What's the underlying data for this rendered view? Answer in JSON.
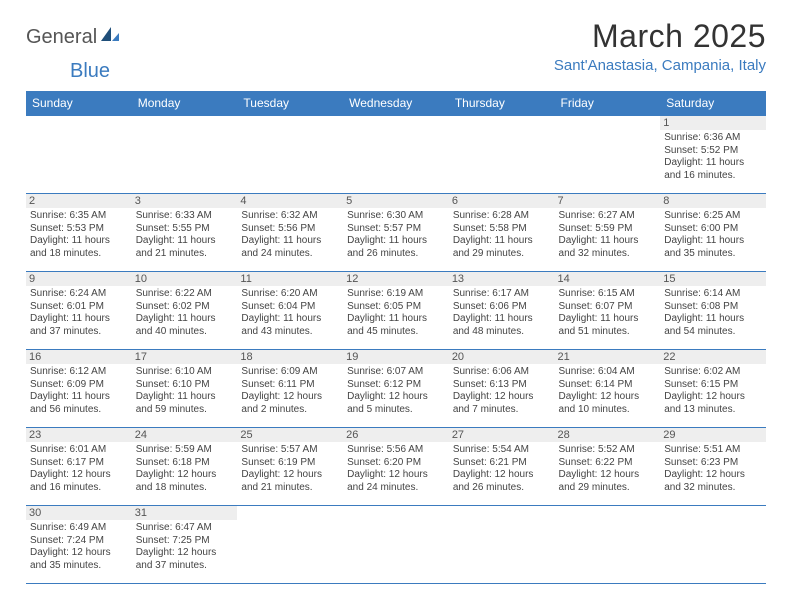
{
  "logo": {
    "general": "General",
    "blue": "Blue"
  },
  "title": "March 2025",
  "location": "Sant'Anastasia, Campania, Italy",
  "colors": {
    "header_bg": "#3b7bbf",
    "header_fg": "#ffffff",
    "daynum_bg": "#eeeeee",
    "border": "#3b7bbf",
    "text": "#444444",
    "title": "#333333"
  },
  "typography": {
    "title_fontsize": 32,
    "location_fontsize": 15,
    "header_fontsize": 12,
    "cell_fontsize": 10,
    "daynum_fontsize": 11
  },
  "day_headers": [
    "Sunday",
    "Monday",
    "Tuesday",
    "Wednesday",
    "Thursday",
    "Friday",
    "Saturday"
  ],
  "weeks": [
    [
      null,
      null,
      null,
      null,
      null,
      null,
      {
        "n": "1",
        "sr": "Sunrise: 6:36 AM",
        "ss": "Sunset: 5:52 PM",
        "dl1": "Daylight: 11 hours",
        "dl2": "and 16 minutes."
      }
    ],
    [
      {
        "n": "2",
        "sr": "Sunrise: 6:35 AM",
        "ss": "Sunset: 5:53 PM",
        "dl1": "Daylight: 11 hours",
        "dl2": "and 18 minutes."
      },
      {
        "n": "3",
        "sr": "Sunrise: 6:33 AM",
        "ss": "Sunset: 5:55 PM",
        "dl1": "Daylight: 11 hours",
        "dl2": "and 21 minutes."
      },
      {
        "n": "4",
        "sr": "Sunrise: 6:32 AM",
        "ss": "Sunset: 5:56 PM",
        "dl1": "Daylight: 11 hours",
        "dl2": "and 24 minutes."
      },
      {
        "n": "5",
        "sr": "Sunrise: 6:30 AM",
        "ss": "Sunset: 5:57 PM",
        "dl1": "Daylight: 11 hours",
        "dl2": "and 26 minutes."
      },
      {
        "n": "6",
        "sr": "Sunrise: 6:28 AM",
        "ss": "Sunset: 5:58 PM",
        "dl1": "Daylight: 11 hours",
        "dl2": "and 29 minutes."
      },
      {
        "n": "7",
        "sr": "Sunrise: 6:27 AM",
        "ss": "Sunset: 5:59 PM",
        "dl1": "Daylight: 11 hours",
        "dl2": "and 32 minutes."
      },
      {
        "n": "8",
        "sr": "Sunrise: 6:25 AM",
        "ss": "Sunset: 6:00 PM",
        "dl1": "Daylight: 11 hours",
        "dl2": "and 35 minutes."
      }
    ],
    [
      {
        "n": "9",
        "sr": "Sunrise: 6:24 AM",
        "ss": "Sunset: 6:01 PM",
        "dl1": "Daylight: 11 hours",
        "dl2": "and 37 minutes."
      },
      {
        "n": "10",
        "sr": "Sunrise: 6:22 AM",
        "ss": "Sunset: 6:02 PM",
        "dl1": "Daylight: 11 hours",
        "dl2": "and 40 minutes."
      },
      {
        "n": "11",
        "sr": "Sunrise: 6:20 AM",
        "ss": "Sunset: 6:04 PM",
        "dl1": "Daylight: 11 hours",
        "dl2": "and 43 minutes."
      },
      {
        "n": "12",
        "sr": "Sunrise: 6:19 AM",
        "ss": "Sunset: 6:05 PM",
        "dl1": "Daylight: 11 hours",
        "dl2": "and 45 minutes."
      },
      {
        "n": "13",
        "sr": "Sunrise: 6:17 AM",
        "ss": "Sunset: 6:06 PM",
        "dl1": "Daylight: 11 hours",
        "dl2": "and 48 minutes."
      },
      {
        "n": "14",
        "sr": "Sunrise: 6:15 AM",
        "ss": "Sunset: 6:07 PM",
        "dl1": "Daylight: 11 hours",
        "dl2": "and 51 minutes."
      },
      {
        "n": "15",
        "sr": "Sunrise: 6:14 AM",
        "ss": "Sunset: 6:08 PM",
        "dl1": "Daylight: 11 hours",
        "dl2": "and 54 minutes."
      }
    ],
    [
      {
        "n": "16",
        "sr": "Sunrise: 6:12 AM",
        "ss": "Sunset: 6:09 PM",
        "dl1": "Daylight: 11 hours",
        "dl2": "and 56 minutes."
      },
      {
        "n": "17",
        "sr": "Sunrise: 6:10 AM",
        "ss": "Sunset: 6:10 PM",
        "dl1": "Daylight: 11 hours",
        "dl2": "and 59 minutes."
      },
      {
        "n": "18",
        "sr": "Sunrise: 6:09 AM",
        "ss": "Sunset: 6:11 PM",
        "dl1": "Daylight: 12 hours",
        "dl2": "and 2 minutes."
      },
      {
        "n": "19",
        "sr": "Sunrise: 6:07 AM",
        "ss": "Sunset: 6:12 PM",
        "dl1": "Daylight: 12 hours",
        "dl2": "and 5 minutes."
      },
      {
        "n": "20",
        "sr": "Sunrise: 6:06 AM",
        "ss": "Sunset: 6:13 PM",
        "dl1": "Daylight: 12 hours",
        "dl2": "and 7 minutes."
      },
      {
        "n": "21",
        "sr": "Sunrise: 6:04 AM",
        "ss": "Sunset: 6:14 PM",
        "dl1": "Daylight: 12 hours",
        "dl2": "and 10 minutes."
      },
      {
        "n": "22",
        "sr": "Sunrise: 6:02 AM",
        "ss": "Sunset: 6:15 PM",
        "dl1": "Daylight: 12 hours",
        "dl2": "and 13 minutes."
      }
    ],
    [
      {
        "n": "23",
        "sr": "Sunrise: 6:01 AM",
        "ss": "Sunset: 6:17 PM",
        "dl1": "Daylight: 12 hours",
        "dl2": "and 16 minutes."
      },
      {
        "n": "24",
        "sr": "Sunrise: 5:59 AM",
        "ss": "Sunset: 6:18 PM",
        "dl1": "Daylight: 12 hours",
        "dl2": "and 18 minutes."
      },
      {
        "n": "25",
        "sr": "Sunrise: 5:57 AM",
        "ss": "Sunset: 6:19 PM",
        "dl1": "Daylight: 12 hours",
        "dl2": "and 21 minutes."
      },
      {
        "n": "26",
        "sr": "Sunrise: 5:56 AM",
        "ss": "Sunset: 6:20 PM",
        "dl1": "Daylight: 12 hours",
        "dl2": "and 24 minutes."
      },
      {
        "n": "27",
        "sr": "Sunrise: 5:54 AM",
        "ss": "Sunset: 6:21 PM",
        "dl1": "Daylight: 12 hours",
        "dl2": "and 26 minutes."
      },
      {
        "n": "28",
        "sr": "Sunrise: 5:52 AM",
        "ss": "Sunset: 6:22 PM",
        "dl1": "Daylight: 12 hours",
        "dl2": "and 29 minutes."
      },
      {
        "n": "29",
        "sr": "Sunrise: 5:51 AM",
        "ss": "Sunset: 6:23 PM",
        "dl1": "Daylight: 12 hours",
        "dl2": "and 32 minutes."
      }
    ],
    [
      {
        "n": "30",
        "sr": "Sunrise: 6:49 AM",
        "ss": "Sunset: 7:24 PM",
        "dl1": "Daylight: 12 hours",
        "dl2": "and 35 minutes."
      },
      {
        "n": "31",
        "sr": "Sunrise: 6:47 AM",
        "ss": "Sunset: 7:25 PM",
        "dl1": "Daylight: 12 hours",
        "dl2": "and 37 minutes."
      },
      null,
      null,
      null,
      null,
      null
    ]
  ]
}
